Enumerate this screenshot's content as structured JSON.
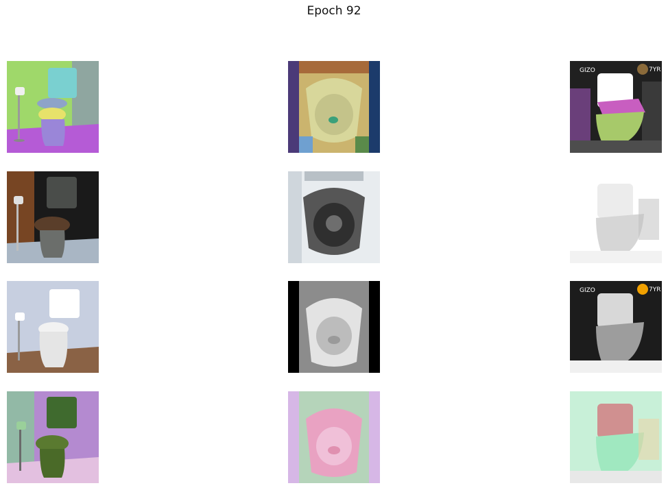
{
  "figure": {
    "title": "Epoch 92"
  },
  "grid": {
    "rows": 4,
    "columns": 3,
    "rows_content": [
      {
        "row": 1,
        "images": [
          {
            "subject": "toilet",
            "palette": [
              "#9fd86a",
              "#7ad0d0",
              "#b55bd6",
              "#e7e26a"
            ]
          },
          {
            "subject": "toilet-bowl-topdown",
            "palette": [
              "#d8d79b",
              "#4b3a78",
              "#1c3b6b",
              "#cbb46e"
            ]
          },
          {
            "subject": "smart-toilet",
            "palette": [
              "#202020",
              "#a7c96a",
              "#c85ec0",
              "#ffffff"
            ],
            "logo": "GIZO",
            "badge": "7YR"
          }
        ]
      },
      {
        "row": 2,
        "images": [
          {
            "subject": "toilet",
            "palette": [
              "#1a1a1a",
              "#4a4d4a",
              "#c46a2c",
              "#a9b6c4"
            ]
          },
          {
            "subject": "toilet-bowl-topdown",
            "palette": [
              "#e8ecef",
              "#565656",
              "#2f2f2f",
              "#cfd6dc"
            ]
          },
          {
            "subject": "smart-toilet",
            "palette": [
              "#ffffff",
              "#ececec",
              "#d6d6d6",
              "#bdbdbd"
            ]
          }
        ]
      },
      {
        "row": 3,
        "images": [
          {
            "subject": "toilet",
            "palette": [
              "#c7cfe0",
              "#ffffff",
              "#8a6245",
              "#e5e5e5"
            ]
          },
          {
            "subject": "toilet-bowl-topdown",
            "palette": [
              "#000000",
              "#bcbcbc",
              "#e3e3e3",
              "#8c8c8c"
            ]
          },
          {
            "subject": "smart-toilet",
            "palette": [
              "#1c1c1c",
              "#9d9d9d",
              "#d8d8d8",
              "#f0a000"
            ],
            "logo": "GIZO",
            "badge": "7YR"
          }
        ]
      },
      {
        "row": 4,
        "images": [
          {
            "subject": "toilet",
            "palette": [
              "#b48ad0",
              "#3f6a2e",
              "#7bd88a",
              "#e3c0e0"
            ]
          },
          {
            "subject": "toilet-bowl-topdown",
            "palette": [
              "#d6b7e6",
              "#e9a2c2",
              "#a7e0a7",
              "#f0f0f0"
            ]
          },
          {
            "subject": "smart-toilet",
            "palette": [
              "#c8f0d8",
              "#a0e8c0",
              "#d09090",
              "#e8e8e8"
            ]
          }
        ]
      }
    ]
  }
}
